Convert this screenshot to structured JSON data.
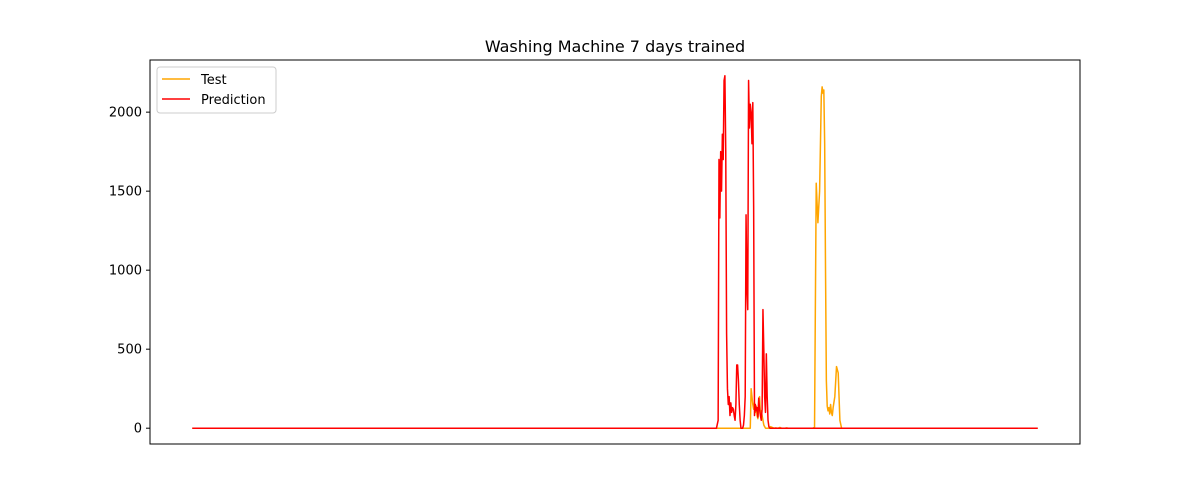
{
  "chart_data": {
    "type": "line",
    "title": "Washing Machine 7 days trained",
    "xlabel": "",
    "ylabel": "",
    "x_ticks_shown": false,
    "xlim": [
      -0.05,
      1.05
    ],
    "ylim": [
      -100,
      2330
    ],
    "yticks": [
      0,
      500,
      1000,
      1500,
      2000
    ],
    "ytick_labels": [
      "0",
      "500",
      "1000",
      "1500",
      "2000"
    ],
    "grid": false,
    "legend": {
      "placement": "top-left",
      "entries": [
        "Test",
        "Prediction"
      ]
    },
    "series": [
      {
        "name": "Test",
        "color": "#ffa500",
        "x": [
          0.0,
          0.65,
          0.66,
          0.661,
          0.662,
          0.663,
          0.664,
          0.665,
          0.666,
          0.667,
          0.668,
          0.669,
          0.67,
          0.671,
          0.672,
          0.673,
          0.675,
          0.676,
          0.677,
          0.678,
          0.68,
          0.682,
          0.684,
          0.686,
          0.688,
          0.69,
          0.693,
          0.695,
          0.697,
          0.699,
          0.7,
          0.701,
          0.703,
          0.705,
          0.707,
          0.708,
          0.709,
          0.71,
          0.711,
          0.712,
          0.713,
          0.714,
          0.715,
          0.716,
          0.717,
          0.718,
          0.719,
          0.72,
          0.722,
          0.724,
          0.726,
          0.728,
          0.73,
          0.732,
          0.734,
          0.736,
          0.738,
          0.74,
          0.742,
          0.743,
          0.744,
          0.745,
          0.746,
          0.747,
          0.748,
          0.749,
          0.75,
          0.751,
          0.752,
          0.753,
          0.754,
          0.755,
          0.756,
          0.757,
          0.758,
          0.76,
          0.762,
          0.764,
          0.766,
          0.768,
          0.77,
          1.0
        ],
        "y": [
          0,
          0,
          0,
          250,
          200,
          150,
          120,
          160,
          100,
          140,
          80,
          60,
          120,
          200,
          90,
          110,
          50,
          20,
          10,
          0,
          0,
          0,
          10,
          5,
          0,
          2,
          0,
          5,
          0,
          0,
          0,
          0,
          2,
          0,
          0,
          0,
          0,
          0,
          0,
          0,
          0,
          0,
          0,
          0,
          0,
          0,
          0,
          0,
          0,
          0,
          0,
          0,
          0,
          0,
          0,
          5,
          1550,
          1300,
          1500,
          1800,
          2100,
          2160,
          2120,
          2140,
          1800,
          1000,
          300,
          140,
          110,
          130,
          90,
          150,
          100,
          80,
          130,
          200,
          390,
          350,
          50,
          0,
          0,
          0
        ]
      },
      {
        "name": "Prediction",
        "color": "#ff0000",
        "x": [
          0.0,
          0.62,
          0.622,
          0.623,
          0.624,
          0.625,
          0.626,
          0.627,
          0.628,
          0.629,
          0.63,
          0.631,
          0.632,
          0.633,
          0.634,
          0.635,
          0.636,
          0.637,
          0.638,
          0.639,
          0.64,
          0.641,
          0.642,
          0.643,
          0.644,
          0.645,
          0.646,
          0.647,
          0.648,
          0.649,
          0.65,
          0.651,
          0.652,
          0.653,
          0.654,
          0.655,
          0.656,
          0.657,
          0.658,
          0.659,
          0.66,
          0.661,
          0.662,
          0.663,
          0.664,
          0.665,
          0.666,
          0.667,
          0.668,
          0.669,
          0.67,
          0.671,
          0.672,
          0.673,
          0.674,
          0.675,
          0.676,
          0.677,
          0.678,
          0.679,
          0.68,
          0.681,
          0.682,
          0.683,
          0.684,
          0.685,
          0.686,
          0.687,
          0.688,
          0.689,
          0.69,
          0.691,
          0.692,
          0.693,
          0.694,
          0.695,
          0.696,
          0.697,
          0.698,
          0.7,
          0.72,
          1.0
        ],
        "y": [
          0,
          0,
          50,
          1700,
          1330,
          1750,
          1500,
          1860,
          1700,
          2200,
          2230,
          1750,
          600,
          250,
          150,
          200,
          80,
          160,
          100,
          130,
          120,
          80,
          50,
          150,
          400,
          400,
          300,
          150,
          50,
          0,
          0,
          0,
          20,
          80,
          200,
          1350,
          900,
          750,
          2200,
          1900,
          2050,
          2000,
          1800,
          2060,
          1400,
          80,
          150,
          110,
          130,
          70,
          190,
          120,
          80,
          50,
          120,
          750,
          500,
          200,
          100,
          470,
          200,
          50,
          10,
          0,
          0,
          0,
          0,
          0,
          0,
          0,
          0,
          0,
          0,
          0,
          0,
          0,
          0,
          0,
          0,
          0,
          0,
          0
        ]
      }
    ]
  }
}
